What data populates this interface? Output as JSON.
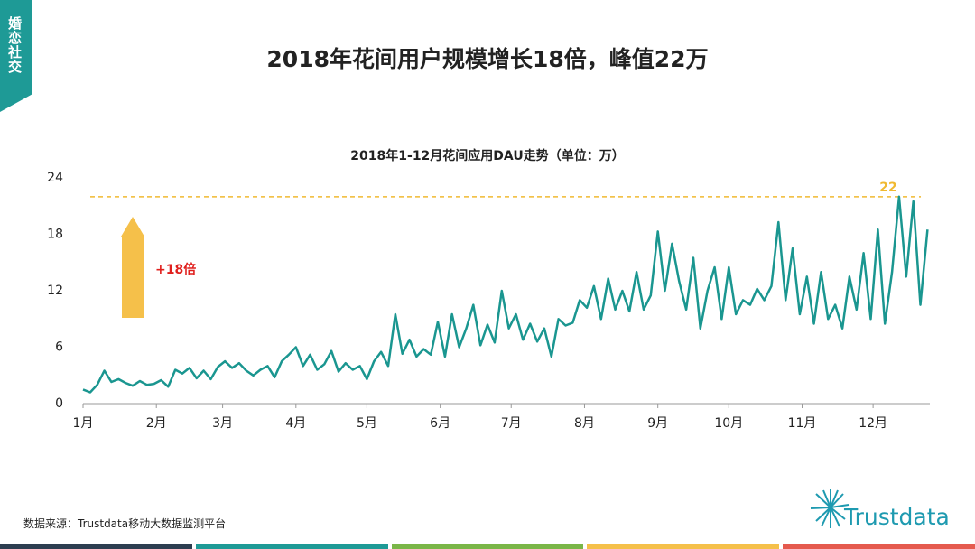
{
  "section_tag": "婚恋社交",
  "slide_title": "2018年花间用户规模增长18倍，峰值22万",
  "source": "数据来源：Trustdata移动大数据监测平台",
  "logo": "Trustdata",
  "chart_data": {
    "type": "line",
    "title": "2018年1-12月花间应用DAU走势（单位：万）",
    "annotation": "+18倍",
    "color": "#1a9690",
    "reference_line": {
      "value": 22,
      "label": "22",
      "color": "#f0b930"
    },
    "x": [
      0,
      3,
      6,
      9,
      12,
      15,
      18,
      21,
      24,
      27,
      30,
      33,
      36,
      39,
      42,
      45,
      48,
      51,
      54,
      57,
      60,
      63,
      66,
      69,
      72,
      75,
      78,
      81,
      84,
      87,
      90,
      93,
      96,
      99,
      102,
      105,
      108,
      111,
      114,
      117,
      120,
      123,
      126,
      129,
      132,
      135,
      138,
      141,
      144,
      147,
      150,
      153,
      156,
      159,
      162,
      165,
      168,
      171,
      174,
      177,
      180,
      183,
      186,
      189,
      192,
      195,
      198,
      201,
      204,
      207,
      210,
      213,
      216,
      219,
      222,
      225,
      228,
      231,
      234,
      237,
      240,
      243,
      246,
      249,
      252,
      255,
      258,
      261,
      264,
      267,
      270,
      273,
      276,
      279,
      282,
      285,
      288,
      291,
      294,
      297,
      300,
      303,
      306,
      309,
      312,
      315,
      318,
      321,
      324,
      327,
      330,
      333,
      336,
      339,
      342,
      345,
      348,
      351,
      354,
      357
    ],
    "values": [
      1.5,
      1.2,
      2.0,
      3.5,
      2.3,
      2.6,
      2.2,
      1.9,
      2.4,
      2.0,
      2.1,
      2.5,
      1.8,
      3.6,
      3.2,
      3.8,
      2.7,
      3.5,
      2.6,
      3.9,
      4.5,
      3.8,
      4.3,
      3.5,
      3.0,
      3.6,
      4.0,
      2.8,
      4.5,
      5.2,
      6.0,
      4.0,
      5.2,
      3.6,
      4.2,
      5.6,
      3.4,
      4.3,
      3.6,
      4.0,
      2.6,
      4.5,
      5.5,
      4.0,
      9.5,
      5.3,
      6.8,
      5.0,
      5.8,
      5.2,
      8.7,
      5.0,
      9.5,
      6.0,
      8.0,
      10.5,
      6.2,
      8.4,
      6.5,
      12.0,
      8.0,
      9.5,
      6.8,
      8.5,
      6.6,
      8.0,
      5.0,
      9.0,
      8.3,
      8.6,
      11.0,
      10.2,
      12.5,
      9.0,
      13.3,
      10.0,
      12.0,
      9.8,
      14.0,
      10.0,
      11.5,
      18.3,
      12.0,
      17.0,
      13.0,
      10.0,
      15.5,
      8.0,
      12.0,
      14.5,
      9.0,
      14.5,
      9.5,
      11.0,
      10.5,
      12.2,
      11.0,
      12.5,
      19.3,
      11.0,
      16.5,
      9.5,
      13.5,
      8.5,
      14.0,
      9.0,
      10.5,
      8.0,
      13.5,
      10.0,
      16.0,
      9.0,
      18.5,
      8.5,
      14.0,
      22.0,
      13.5,
      21.5,
      10.5,
      18.5
    ],
    "xlim": [
      0,
      358
    ],
    "xticks": [
      {
        "value": 0,
        "label": "1月"
      },
      {
        "value": 31,
        "label": "2月"
      },
      {
        "value": 59,
        "label": "3月"
      },
      {
        "value": 90,
        "label": "4月"
      },
      {
        "value": 120,
        "label": "5月"
      },
      {
        "value": 151,
        "label": "6月"
      },
      {
        "value": 181,
        "label": "7月"
      },
      {
        "value": 212,
        "label": "8月"
      },
      {
        "value": 243,
        "label": "9月"
      },
      {
        "value": 273,
        "label": "10月"
      },
      {
        "value": 304,
        "label": "11月"
      },
      {
        "value": 334,
        "label": "12月"
      }
    ],
    "ylim": [
      0,
      24
    ],
    "yticks": [
      0,
      6,
      12,
      18,
      24
    ]
  }
}
